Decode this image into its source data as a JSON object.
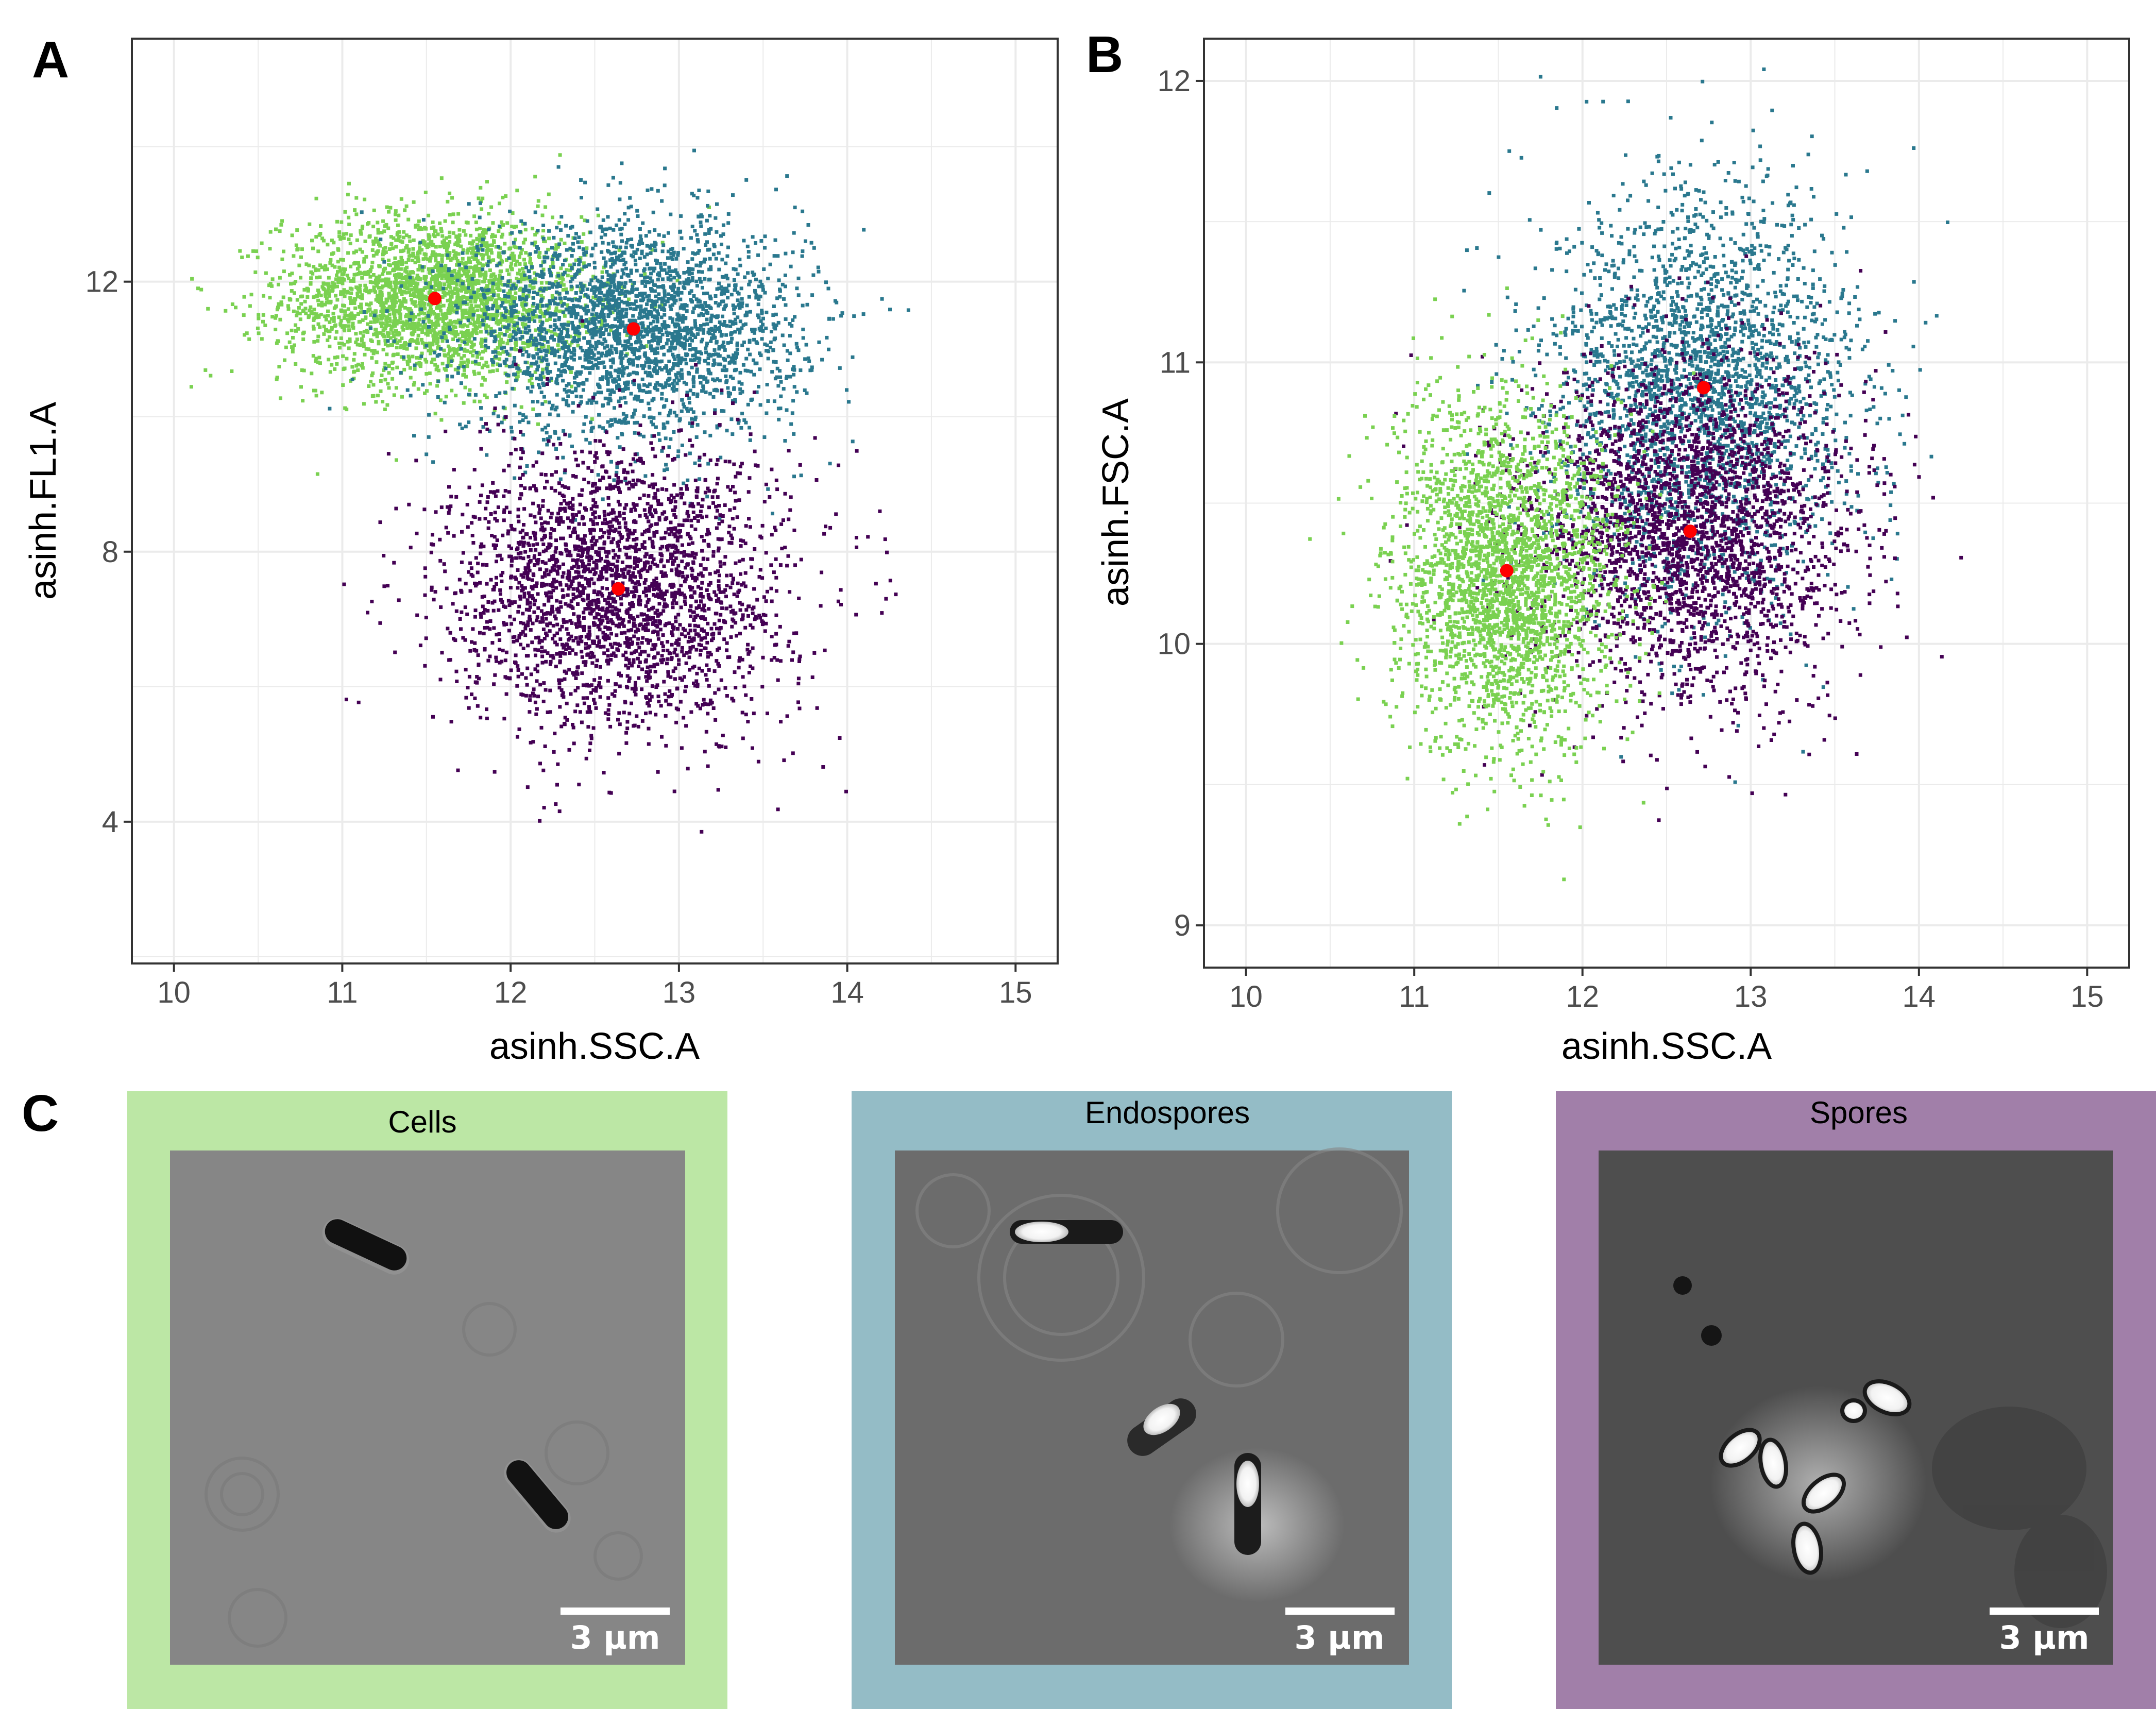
{
  "figure": {
    "panel_labels": [
      "A",
      "B",
      "C"
    ]
  },
  "colors": {
    "cells": "#7ad151",
    "endospores": "#2a788e",
    "spores": "#440154",
    "center_marker": "#ff0000",
    "grid": "#ebebeb",
    "frame_cells": "#bce7a5",
    "frame_endospores": "#94bcc6",
    "frame_spores": "#a17fa9"
  },
  "chart_data": [
    {
      "type": "scatter",
      "panel": "A",
      "xlabel": "asinh.SSC.A",
      "ylabel": "asinh.FL1.A",
      "xlim": [
        9.75,
        15.25
      ],
      "ylim": [
        1.9,
        15.6
      ],
      "x_ticks": [
        10,
        11,
        12,
        13,
        14,
        15
      ],
      "y_ticks": [
        4,
        8,
        12
      ],
      "grid": true,
      "series": [
        {
          "color_key": "cells",
          "center": [
            11.55,
            11.75
          ],
          "spread": [
            0.45,
            0.62
          ]
        },
        {
          "color_key": "endospores",
          "center": [
            12.73,
            11.3
          ],
          "spread": [
            0.5,
            0.8
          ]
        },
        {
          "color_key": "spores",
          "center": [
            12.64,
            7.45
          ],
          "spread": [
            0.5,
            1.05
          ]
        }
      ],
      "centers": [
        {
          "x": 11.55,
          "y": 11.75
        },
        {
          "x": 12.73,
          "y": 11.3
        },
        {
          "x": 12.64,
          "y": 7.45
        }
      ]
    },
    {
      "type": "scatter",
      "panel": "B",
      "xlabel": "asinh.SSC.A",
      "ylabel": "asinh.FSC.A",
      "xlim": [
        9.75,
        15.25
      ],
      "ylim": [
        8.85,
        12.15
      ],
      "x_ticks": [
        10,
        11,
        12,
        13,
        14,
        15
      ],
      "y_ticks": [
        9,
        10,
        11,
        12
      ],
      "grid": true,
      "series": [
        {
          "color_key": "endospores",
          "center": [
            12.72,
            10.9
          ],
          "spread": [
            0.45,
            0.35
          ]
        },
        {
          "color_key": "spores",
          "center": [
            12.64,
            10.4
          ],
          "spread": [
            0.48,
            0.3
          ]
        },
        {
          "color_key": "cells",
          "center": [
            11.55,
            10.25
          ],
          "spread": [
            0.33,
            0.3
          ]
        }
      ],
      "centers": [
        {
          "x": 11.55,
          "y": 10.26
        },
        {
          "x": 12.72,
          "y": 10.91
        },
        {
          "x": 12.64,
          "y": 10.4
        }
      ]
    }
  ],
  "micrographs": [
    {
      "title": "Cells",
      "frame_key": "frame_cells",
      "scale_label": "3 µm",
      "subject": "rod-shaped cells"
    },
    {
      "title": "Endospores",
      "frame_key": "frame_endospores",
      "scale_label": "3 µm",
      "subject": "cells with bright endospores"
    },
    {
      "title": "Spores",
      "frame_key": "frame_spores",
      "scale_label": "3 µm",
      "subject": "bright free spores"
    }
  ]
}
